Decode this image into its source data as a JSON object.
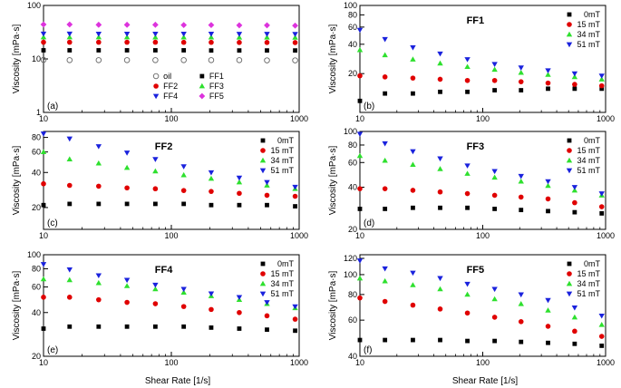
{
  "figure": {
    "ylabel": "Viscosity [mPa·s]",
    "xlabel": "Shear Rate [1/s]"
  },
  "chart_data": [
    {
      "type": "scatter",
      "panel_label": "(a)",
      "title": "",
      "yscale": "log",
      "ylim": [
        1,
        100
      ],
      "yticks": [
        "1",
        "10",
        "100"
      ],
      "xscale": "log",
      "xlim": [
        10,
        1000
      ],
      "xticks": [
        "10",
        "100",
        "1000"
      ],
      "legend_columns": 2,
      "x": [
        10,
        16,
        27,
        45,
        75,
        125,
        205,
        340,
        560,
        930
      ],
      "series": [
        {
          "name": "oil",
          "color": "#666666",
          "marker": "circle-open",
          "values": [
            9.6,
            9.5,
            9.5,
            9.5,
            9.5,
            9.5,
            9.5,
            9.5,
            9.4,
            9.4
          ]
        },
        {
          "name": "FF1",
          "color": "#000000",
          "marker": "square",
          "values": [
            14.5,
            14.5,
            14.5,
            14.5,
            14.5,
            14.5,
            14.4,
            14.4,
            14.4,
            14.4
          ]
        },
        {
          "name": "FF2",
          "color": "#e00000",
          "marker": "circle",
          "values": [
            20.5,
            20.5,
            20.5,
            20.5,
            20.5,
            20.4,
            20.4,
            20.3,
            20.3,
            20.2
          ]
        },
        {
          "name": "FF3",
          "color": "#2ee02e",
          "marker": "triangle-up",
          "values": [
            25.5,
            25.5,
            25.5,
            25.5,
            25.4,
            25.4,
            25.4,
            25.3,
            25.3,
            25.2
          ]
        },
        {
          "name": "FF4",
          "color": "#1a22dd",
          "marker": "triangle-down",
          "values": [
            29.5,
            29.5,
            29.4,
            29.4,
            29.4,
            29.3,
            29.3,
            29.2,
            29.2,
            29.1
          ]
        },
        {
          "name": "FF5",
          "color": "#dd33dd",
          "marker": "diamond",
          "values": [
            44,
            44,
            43.5,
            43.5,
            43.5,
            43,
            43,
            42.5,
            42.5,
            42
          ]
        }
      ]
    },
    {
      "type": "scatter",
      "panel_label": "(b)",
      "title": "FF1",
      "yscale": "log",
      "ylim": [
        8,
        100
      ],
      "yticks": [
        "20",
        "40",
        "60",
        "80",
        "100"
      ],
      "xscale": "log",
      "xlim": [
        10,
        1000
      ],
      "xticks": [
        "10",
        "100",
        "1000"
      ],
      "legend_columns": 1,
      "x": [
        10,
        16,
        27,
        45,
        75,
        125,
        205,
        340,
        560,
        930
      ],
      "series": [
        {
          "name": "0mT",
          "color": "#000000",
          "marker": "square",
          "values": [
            10.5,
            12.5,
            12.5,
            13,
            13,
            13.5,
            13.5,
            14,
            14,
            14
          ]
        },
        {
          "name": "15 mT",
          "color": "#e00000",
          "marker": "circle",
          "values": [
            19,
            18.5,
            18,
            17.5,
            17,
            17,
            16.5,
            16,
            15.5,
            15
          ]
        },
        {
          "name": "34 mT",
          "color": "#2ee02e",
          "marker": "triangle-up",
          "values": [
            35,
            31,
            28,
            25.5,
            23.5,
            22,
            20.5,
            19.5,
            18.5,
            17.5
          ]
        },
        {
          "name": "51 mT",
          "color": "#1a22dd",
          "marker": "triangle-down",
          "values": [
            56,
            45,
            37,
            32,
            28,
            25,
            23,
            21.5,
            20,
            19
          ]
        }
      ]
    },
    {
      "type": "scatter",
      "panel_label": "(c)",
      "title": "FF2",
      "yscale": "log",
      "ylim": [
        13,
        90
      ],
      "yticks": [
        "20",
        "40",
        "60",
        "80"
      ],
      "xscale": "log",
      "xlim": [
        10,
        1000
      ],
      "xticks": [
        "10",
        "100",
        "1000"
      ],
      "legend_columns": 1,
      "x": [
        10,
        16,
        27,
        45,
        75,
        125,
        205,
        340,
        560,
        930
      ],
      "series": [
        {
          "name": "0mT",
          "color": "#000000",
          "marker": "square",
          "values": [
            21,
            21.5,
            21.5,
            21.5,
            21.5,
            21.5,
            21,
            21,
            21,
            20.5
          ]
        },
        {
          "name": "15 mT",
          "color": "#e00000",
          "marker": "circle",
          "values": [
            32,
            31,
            30.5,
            29.5,
            29,
            28,
            27.5,
            26.5,
            25.5,
            25
          ]
        },
        {
          "name": "34 mT",
          "color": "#2ee02e",
          "marker": "triangle-up",
          "values": [
            60,
            52,
            48,
            44,
            41,
            38,
            35.5,
            33,
            31,
            29
          ]
        },
        {
          "name": "51 mT",
          "color": "#1a22dd",
          "marker": "triangle-down",
          "values": [
            86,
            78,
            67,
            59,
            52,
            45,
            40,
            36,
            33,
            30
          ]
        }
      ]
    },
    {
      "type": "scatter",
      "panel_label": "(d)",
      "title": "FF3",
      "yscale": "log",
      "ylim": [
        20,
        100
      ],
      "yticks": [
        "20",
        "40",
        "60",
        "80",
        "100"
      ],
      "xscale": "log",
      "xlim": [
        10,
        1000
      ],
      "xticks": [
        "10",
        "100",
        "1000"
      ],
      "legend_columns": 1,
      "x": [
        10,
        16,
        27,
        45,
        75,
        125,
        205,
        340,
        560,
        930
      ],
      "series": [
        {
          "name": "0mT",
          "color": "#000000",
          "marker": "square",
          "values": [
            28,
            28,
            28.5,
            28.5,
            28.5,
            28,
            27.5,
            27,
            26.5,
            26
          ]
        },
        {
          "name": "15 mT",
          "color": "#e00000",
          "marker": "circle",
          "values": [
            39,
            39,
            38,
            37,
            36,
            35,
            34,
            33,
            31,
            29
          ]
        },
        {
          "name": "34 mT",
          "color": "#2ee02e",
          "marker": "triangle-up",
          "values": [
            67,
            62,
            58,
            54,
            50,
            47,
            44,
            41,
            38,
            35
          ]
        },
        {
          "name": "51 mT",
          "color": "#1a22dd",
          "marker": "triangle-down",
          "values": [
            96,
            82,
            72,
            64,
            57,
            52,
            48,
            44,
            40,
            36
          ]
        }
      ]
    },
    {
      "type": "scatter",
      "panel_label": "(e)",
      "title": "FF4",
      "yscale": "log",
      "ylim": [
        20,
        100
      ],
      "yticks": [
        "20",
        "40",
        "60",
        "80",
        "100"
      ],
      "xscale": "log",
      "xlim": [
        10,
        1000
      ],
      "xticks": [
        "10",
        "100",
        "1000"
      ],
      "legend_columns": 1,
      "x": [
        10,
        16,
        27,
        45,
        75,
        125,
        205,
        340,
        560,
        930
      ],
      "series": [
        {
          "name": "0mT",
          "color": "#000000",
          "marker": "square",
          "values": [
            31,
            32,
            32,
            32,
            32,
            32,
            31.5,
            31,
            30.5,
            30
          ]
        },
        {
          "name": "15 mT",
          "color": "#e00000",
          "marker": "circle",
          "values": [
            51,
            51,
            49,
            47,
            46,
            44,
            42,
            40,
            38,
            36
          ]
        },
        {
          "name": "34 mT",
          "color": "#2ee02e",
          "marker": "triangle-up",
          "values": [
            68,
            67,
            64,
            61,
            58,
            55,
            52,
            49,
            46,
            43
          ]
        },
        {
          "name": "51 mT",
          "color": "#1a22dd",
          "marker": "triangle-down",
          "values": [
            86,
            79,
            72,
            67,
            62,
            58,
            54,
            51,
            47,
            44
          ]
        }
      ]
    },
    {
      "type": "scatter",
      "panel_label": "(f)",
      "title": "FF5",
      "yscale": "log",
      "ylim": [
        40,
        125
      ],
      "yticks": [
        "40",
        "60",
        "80",
        "100",
        "120"
      ],
      "xscale": "log",
      "xlim": [
        10,
        1000
      ],
      "xticks": [
        "10",
        "100",
        "1000"
      ],
      "legend_columns": 1,
      "x": [
        10,
        16,
        27,
        45,
        75,
        125,
        205,
        340,
        560,
        930
      ],
      "series": [
        {
          "name": "0mT",
          "color": "#000000",
          "marker": "square",
          "values": [
            48,
            48,
            48,
            48,
            47.5,
            47.5,
            47,
            46.5,
            46,
            45
          ]
        },
        {
          "name": "15 mT",
          "color": "#e00000",
          "marker": "circle",
          "values": [
            77,
            74,
            71,
            68,
            65,
            62,
            59,
            56,
            53,
            50
          ]
        },
        {
          "name": "34 mT",
          "color": "#2ee02e",
          "marker": "triangle-up",
          "values": [
            96,
            93,
            89,
            85,
            80,
            76,
            72,
            67,
            62,
            57
          ]
        },
        {
          "name": "51 mT",
          "color": "#1a22dd",
          "marker": "triangle-down",
          "values": [
            117,
            107,
            102,
            96,
            90,
            85,
            80,
            75,
            69,
            63
          ]
        }
      ]
    }
  ]
}
